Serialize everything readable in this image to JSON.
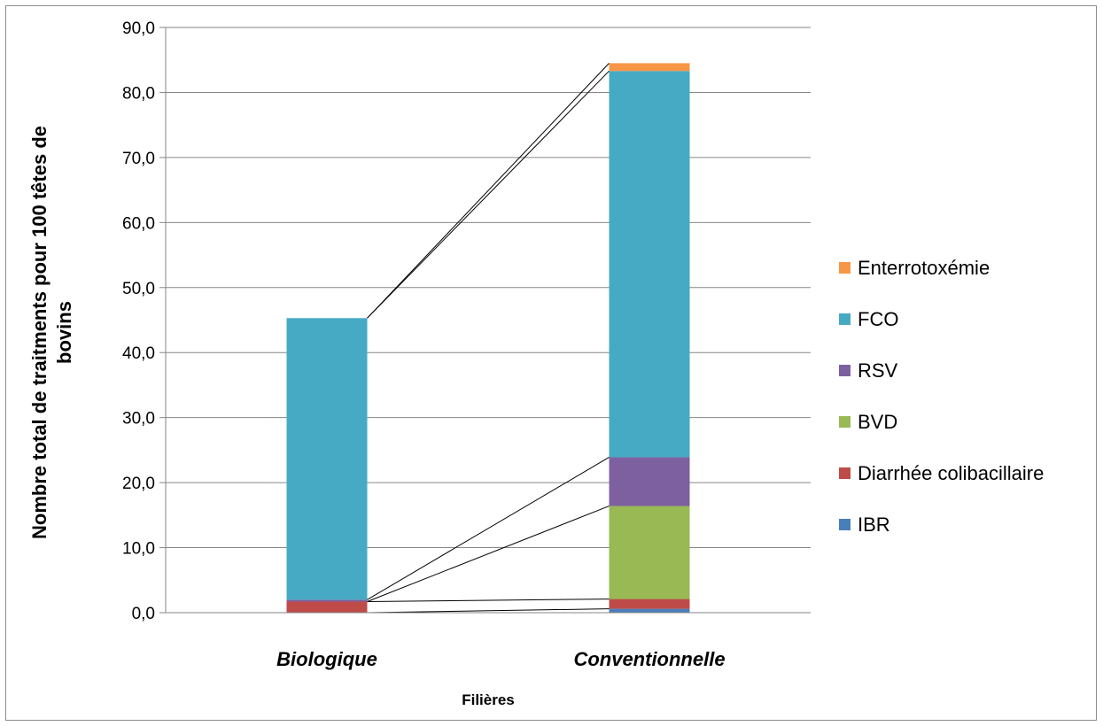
{
  "chart_data": {
    "type": "bar",
    "stacked": true,
    "title": "",
    "xlabel": "Filières",
    "ylabel": "Nombre total de traitments pour 100 têtes de bovins",
    "ylim": [
      0,
      90
    ],
    "yticks": [
      "0,0",
      "10,0",
      "20,0",
      "30,0",
      "40,0",
      "50,0",
      "60,0",
      "70,0",
      "80,0",
      "90,0"
    ],
    "categories": [
      "Biologique",
      "Conventionnelle"
    ],
    "grid": true,
    "legend_position": "right",
    "series_connectors": true,
    "series": [
      {
        "name": "IBR",
        "color": "#4a7ebb",
        "values": [
          0.0,
          0.6
        ]
      },
      {
        "name": "Diarrhée colibacillaire",
        "color": "#be4b48",
        "values": [
          1.7,
          1.5
        ]
      },
      {
        "name": "BVD",
        "color": "#98b954",
        "values": [
          0.0,
          14.3
        ]
      },
      {
        "name": "RSV",
        "color": "#7d60a0",
        "values": [
          0.3,
          7.5
        ]
      },
      {
        "name": "FCO",
        "color": "#46aac4",
        "values": [
          43.3,
          59.4
        ]
      },
      {
        "name": "Enterrotoxémie",
        "color": "#f79646",
        "values": [
          0.0,
          1.2
        ]
      }
    ]
  }
}
